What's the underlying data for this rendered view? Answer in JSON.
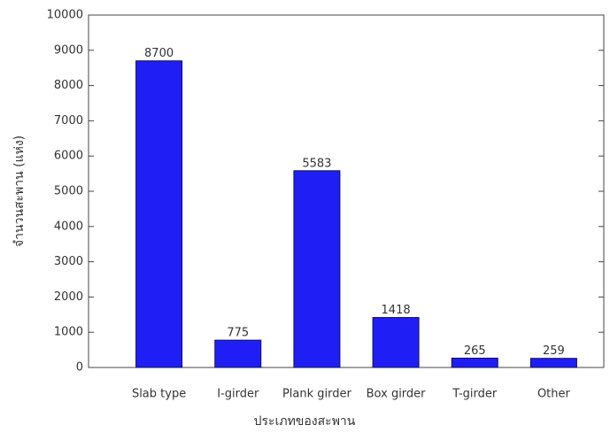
{
  "chart_data": {
    "type": "bar",
    "x_label": "ประเภทของสะพาน",
    "y_label": "จำนวนสะพาน (แห่ง)",
    "categories": [
      "Slab type",
      "I-girder",
      "Plank girder",
      "Box girder",
      "T-girder",
      "Other"
    ],
    "values": [
      8700,
      775,
      5583,
      1418,
      265,
      259
    ],
    "color": "#1f1ff5",
    "ylim": [
      0,
      10000
    ],
    "yticks": [
      0,
      1000,
      2000,
      3000,
      4000,
      5000,
      6000,
      7000,
      8000,
      9000,
      10000
    ],
    "grid": false
  }
}
